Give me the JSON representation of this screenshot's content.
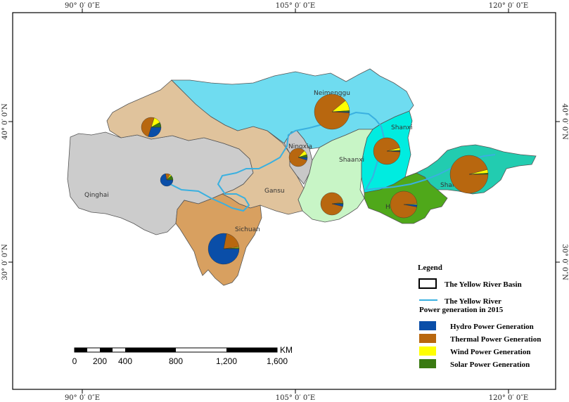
{
  "axes": {
    "lon_top": [
      "90° 0′ 0″E",
      "105° 0′ 0″E",
      "120° 0′ 0″E"
    ],
    "lon_bottom": [
      "90° 0′ 0″E",
      "105° 0′ 0″E",
      "120° 0′ 0″E"
    ],
    "lat_left": [
      "40° 0′ 0″N",
      "30° 0′ 0″N"
    ],
    "lat_right": [
      "40° 0′ 0″N",
      "30° 0′ 0″N"
    ]
  },
  "provinces": {
    "qinghai": "Qinghai",
    "sichuan": "Sichuan",
    "gansu": "Gansu",
    "ningxia": "Ningxia",
    "neimenggu": "Neimenggu",
    "shaanxi": "Shaanxi",
    "shanxi": "Shanxi",
    "henan": "Henan",
    "shandong": "Shandong"
  },
  "legend": {
    "title": "Legend",
    "basin": "The Yellow River Basin",
    "river": "The Yellow River",
    "power_title": "Power generation in 2015",
    "hydro": "Hydro Power Generation",
    "thermal": "Thermal Power Generation",
    "wind": "Wind Power Generation",
    "solar": "Solar Power Generation"
  },
  "scale": {
    "unit": "KM",
    "labels": [
      "0",
      "200",
      "400",
      "800",
      "1,200",
      "1,600"
    ]
  },
  "colors": {
    "hydro": "#0a4ea8",
    "thermal": "#b8670f",
    "wind": "#ffff00",
    "solar": "#3a7a12",
    "river": "#3ab0e0"
  },
  "pies": [
    {
      "province": "Qinghai",
      "hydro": 0.72,
      "thermal": 0.12,
      "wind": 0.04,
      "solar": 0.12
    },
    {
      "province": "Sichuan",
      "hydro": 0.78,
      "thermal": 0.2,
      "wind": 0.01,
      "solar": 0.01
    },
    {
      "province": "Gansu (north)",
      "hydro": 0.3,
      "thermal": 0.5,
      "wind": 0.12,
      "solar": 0.08
    },
    {
      "province": "Ningxia",
      "hydro": 0.05,
      "thermal": 0.82,
      "wind": 0.08,
      "solar": 0.05
    },
    {
      "province": "Neimenggu",
      "hydro": 0.01,
      "thermal": 0.88,
      "wind": 0.1,
      "solar": 0.01
    },
    {
      "province": "Shanxi",
      "hydro": 0.01,
      "thermal": 0.95,
      "wind": 0.03,
      "solar": 0.01
    },
    {
      "province": "Shaanxi",
      "hydro": 0.04,
      "thermal": 0.94,
      "wind": 0.01,
      "solar": 0.01
    },
    {
      "province": "Henan",
      "hydro": 0.03,
      "thermal": 0.96,
      "wind": 0.01,
      "solar": 0.0
    },
    {
      "province": "Shandong",
      "hydro": 0.0,
      "thermal": 0.96,
      "wind": 0.03,
      "solar": 0.01
    }
  ]
}
